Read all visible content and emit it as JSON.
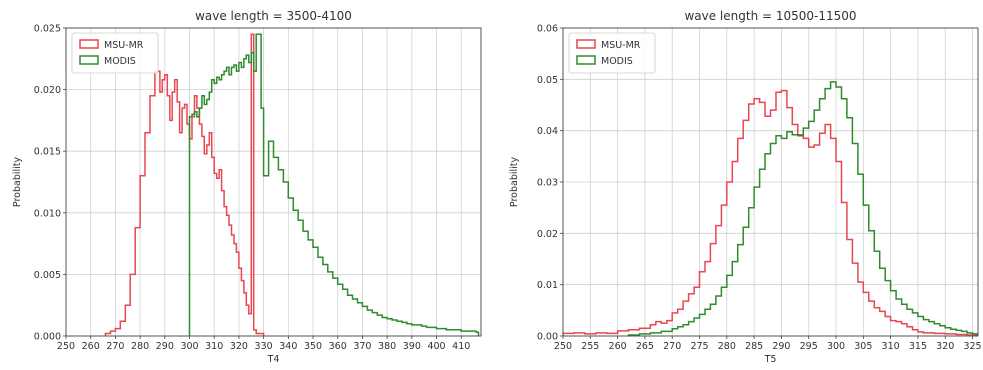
{
  "chart_data": [
    {
      "type": "step-histogram",
      "title": "wave length = 3500-4100",
      "xlabel": "T4",
      "ylabel": "Probability",
      "xlim": [
        250,
        418
      ],
      "ylim": [
        0,
        0.025
      ],
      "xticks": [
        250,
        260,
        270,
        280,
        290,
        300,
        310,
        320,
        330,
        340,
        350,
        360,
        370,
        380,
        390,
        400,
        410
      ],
      "yticks": [
        0.0,
        0.005,
        0.01,
        0.015,
        0.02,
        0.025
      ],
      "ytick_labels": [
        "0.000",
        "0.005",
        "0.010",
        "0.015",
        "0.020",
        "0.025"
      ],
      "grid": true,
      "legend_position": "top-left",
      "series": [
        {
          "name": "MSU-MR",
          "color": "#e8474f",
          "x": [
            266,
            268,
            270,
            272,
            274,
            276,
            278,
            280,
            282,
            284,
            286,
            288,
            289,
            290,
            291,
            292,
            293,
            294,
            295,
            296,
            297,
            298,
            299,
            300,
            301,
            302,
            303,
            304,
            305,
            306,
            307,
            308,
            309,
            310,
            311,
            312,
            313,
            314,
            315,
            316,
            317,
            318,
            319,
            320,
            321,
            322,
            323,
            324,
            325,
            326,
            327,
            328
          ],
          "values": [
            0.0002,
            0.0004,
            0.0006,
            0.0012,
            0.0025,
            0.005,
            0.0088,
            0.013,
            0.0165,
            0.0195,
            0.0215,
            0.0198,
            0.0208,
            0.0212,
            0.0195,
            0.0175,
            0.0198,
            0.0208,
            0.019,
            0.0165,
            0.0185,
            0.0188,
            0.0172,
            0.016,
            0.0178,
            0.0195,
            0.0185,
            0.0172,
            0.0162,
            0.0148,
            0.0155,
            0.0165,
            0.0145,
            0.0132,
            0.0128,
            0.0135,
            0.0118,
            0.0105,
            0.0098,
            0.009,
            0.0082,
            0.0075,
            0.0068,
            0.0055,
            0.0045,
            0.0035,
            0.0025,
            0.0018,
            0.0245,
            0.0005,
            0.0002,
            0.0002
          ]
        },
        {
          "name": "MODIS",
          "color": "#2e8b2e",
          "x": [
            300,
            301,
            302,
            303,
            304,
            305,
            306,
            307,
            308,
            309,
            310,
            311,
            312,
            313,
            314,
            315,
            316,
            317,
            318,
            319,
            320,
            321,
            322,
            323,
            324,
            325,
            326,
            327,
            328,
            329,
            330,
            332,
            334,
            336,
            338,
            340,
            342,
            344,
            346,
            348,
            350,
            352,
            354,
            356,
            358,
            360,
            362,
            364,
            366,
            368,
            370,
            372,
            374,
            376,
            378,
            380,
            382,
            384,
            386,
            388,
            390,
            392,
            394,
            396,
            398,
            400,
            402,
            404,
            406,
            408,
            410,
            412,
            414,
            416
          ],
          "values": [
            0.0178,
            0.018,
            0.0182,
            0.0178,
            0.0185,
            0.0195,
            0.0188,
            0.0192,
            0.0198,
            0.0208,
            0.0205,
            0.021,
            0.0208,
            0.0212,
            0.0215,
            0.0218,
            0.0212,
            0.0218,
            0.022,
            0.0215,
            0.0222,
            0.0218,
            0.0225,
            0.0228,
            0.0222,
            0.023,
            0.0215,
            0.0245,
            0.0245,
            0.0185,
            0.013,
            0.0158,
            0.0145,
            0.0135,
            0.0125,
            0.0112,
            0.0102,
            0.0094,
            0.0085,
            0.0078,
            0.0072,
            0.0064,
            0.0058,
            0.0052,
            0.0047,
            0.0042,
            0.0038,
            0.0033,
            0.003,
            0.0027,
            0.0024,
            0.0021,
            0.0019,
            0.0017,
            0.0015,
            0.0014,
            0.0013,
            0.0012,
            0.0011,
            0.001,
            0.0009,
            0.0009,
            0.0008,
            0.0007,
            0.0007,
            0.0006,
            0.0006,
            0.0005,
            0.0005,
            0.0005,
            0.0004,
            0.0004,
            0.0004,
            0.0003
          ]
        }
      ]
    },
    {
      "type": "step-histogram",
      "title": "wave length = 10500-11500",
      "xlabel": "T5",
      "ylabel": "Probability",
      "xlim": [
        250,
        326
      ],
      "ylim": [
        0,
        0.06
      ],
      "xticks": [
        250,
        255,
        260,
        265,
        270,
        275,
        280,
        285,
        290,
        295,
        300,
        305,
        310,
        315,
        320,
        325
      ],
      "yticks": [
        0.0,
        0.01,
        0.02,
        0.03,
        0.04,
        0.05,
        0.06
      ],
      "ytick_labels": [
        "0.00",
        "0.01",
        "0.02",
        "0.03",
        "0.04",
        "0.05",
        "0.06"
      ],
      "grid": true,
      "legend_position": "top-left",
      "series": [
        {
          "name": "MSU-MR",
          "color": "#e8474f",
          "x": [
            250,
            252,
            254,
            256,
            258,
            260,
            262,
            264,
            266,
            267,
            268,
            269,
            270,
            271,
            272,
            273,
            274,
            275,
            276,
            277,
            278,
            279,
            280,
            281,
            282,
            283,
            284,
            285,
            286,
            287,
            288,
            289,
            290,
            291,
            292,
            293,
            294,
            295,
            296,
            297,
            298,
            299,
            300,
            301,
            302,
            303,
            304,
            305,
            306,
            307,
            308,
            309,
            310,
            311,
            312,
            313,
            314,
            315,
            316,
            318,
            320,
            322,
            324
          ],
          "values": [
            0.0005,
            0.0006,
            0.0004,
            0.0006,
            0.0005,
            0.001,
            0.0012,
            0.0015,
            0.0022,
            0.0028,
            0.0025,
            0.003,
            0.0045,
            0.0052,
            0.0068,
            0.0082,
            0.0095,
            0.0125,
            0.0145,
            0.018,
            0.0215,
            0.0255,
            0.03,
            0.034,
            0.0385,
            0.042,
            0.0452,
            0.0462,
            0.0455,
            0.0428,
            0.044,
            0.0475,
            0.0478,
            0.0445,
            0.0412,
            0.0392,
            0.0385,
            0.0368,
            0.0372,
            0.0395,
            0.0412,
            0.0385,
            0.034,
            0.026,
            0.0188,
            0.0142,
            0.0105,
            0.0085,
            0.0068,
            0.0055,
            0.0048,
            0.0038,
            0.003,
            0.0028,
            0.0024,
            0.0018,
            0.0012,
            0.0008,
            0.0006,
            0.0005,
            0.0004,
            0.0003,
            0.0002
          ]
        },
        {
          "name": "MODIS",
          "color": "#2e8b2e",
          "x": [
            262,
            264,
            266,
            268,
            270,
            271,
            272,
            273,
            274,
            275,
            276,
            277,
            278,
            279,
            280,
            281,
            282,
            283,
            284,
            285,
            286,
            287,
            288,
            289,
            290,
            291,
            292,
            293,
            294,
            295,
            296,
            297,
            298,
            299,
            300,
            301,
            302,
            303,
            304,
            305,
            306,
            307,
            308,
            309,
            310,
            311,
            312,
            313,
            314,
            315,
            316,
            317,
            318,
            319,
            320,
            321,
            322,
            323,
            324,
            325
          ],
          "values": [
            0.0002,
            0.0004,
            0.0006,
            0.0009,
            0.0014,
            0.0018,
            0.0022,
            0.0028,
            0.0035,
            0.0042,
            0.0052,
            0.0062,
            0.0078,
            0.0095,
            0.0118,
            0.0145,
            0.0178,
            0.0212,
            0.025,
            0.029,
            0.0325,
            0.0355,
            0.0375,
            0.039,
            0.0385,
            0.0398,
            0.0392,
            0.039,
            0.0405,
            0.0418,
            0.044,
            0.0462,
            0.0482,
            0.0495,
            0.0485,
            0.0462,
            0.0425,
            0.0375,
            0.0315,
            0.0255,
            0.0205,
            0.0165,
            0.0132,
            0.0108,
            0.0088,
            0.0072,
            0.0062,
            0.0052,
            0.0045,
            0.0038,
            0.0032,
            0.0028,
            0.0024,
            0.002,
            0.0016,
            0.0013,
            0.0011,
            0.0009,
            0.0006,
            0.0004
          ]
        }
      ]
    }
  ]
}
